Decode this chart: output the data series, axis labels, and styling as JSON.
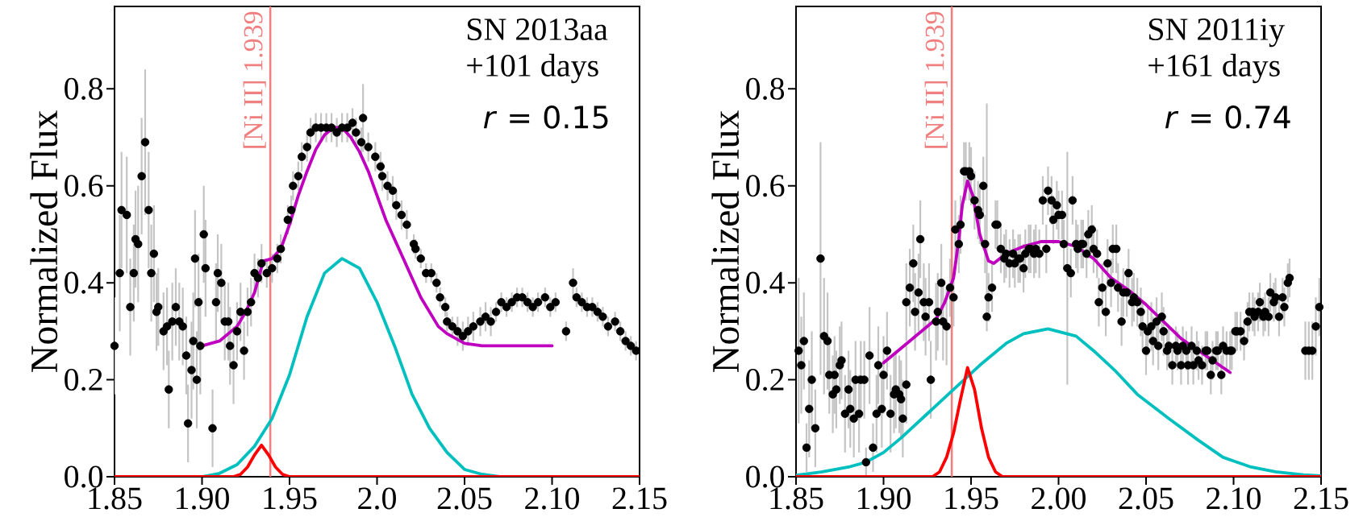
{
  "chart_data": [
    {
      "type": "scatter",
      "ylabel": "Normalized Flux",
      "xlim": [
        1.85,
        2.15
      ],
      "ylim": [
        0,
        0.97
      ],
      "xticks": [
        1.85,
        {
          "value": 1.9,
          "label": "1.90"
        },
        1.95,
        {
          "value": 2.0,
          "label": "2.0"
        },
        2.05,
        {
          "value": 2.1,
          "label": "2.10"
        },
        2.15
      ],
      "yticks": [
        {
          "value": 0,
          "label": "0.0"
        },
        0.2,
        0.4,
        0.6,
        0.8
      ],
      "annotations": [
        "SN 2013aa",
        "+101 days",
        "*r* = 0.15"
      ],
      "ref_lines": [
        {
          "axis": "x",
          "value": 1.939,
          "label": "[Ni II] 1.939",
          "color": "#f08080"
        }
      ],
      "series": [
        {
          "color": "#000000",
          "marker": "circle",
          "x": [
            1.85,
            1.853,
            1.854,
            1.857,
            1.859,
            1.861,
            1.862,
            1.8635,
            1.8655,
            1.8675,
            1.8695,
            1.871,
            1.8725,
            1.874,
            1.875,
            1.878,
            1.88,
            1.881,
            1.883,
            1.885,
            1.887,
            1.889,
            1.891,
            1.892,
            1.894,
            1.895,
            1.896,
            1.897,
            1.898,
            1.899,
            1.901,
            1.902,
            1.906,
            1.908,
            1.909,
            1.911,
            1.913,
            1.915,
            1.916,
            1.918,
            1.92,
            1.922,
            1.924,
            1.926,
            1.928,
            1.93,
            1.932,
            1.934,
            1.937,
            1.94,
            1.943,
            1.945,
            1.949,
            1.951,
            1.952,
            1.955,
            1.957,
            1.96,
            1.962,
            1.965,
            1.968,
            1.971,
            1.974,
            1.977,
            1.98,
            1.983,
            1.986,
            1.988,
            1.991,
            1.992,
            1.995,
            1.999,
            2.002,
            2.003,
            2.006,
            2.009,
            2.011,
            2.014,
            2.017,
            2.021,
            2.022,
            2.025,
            2.028,
            2.031,
            2.034,
            2.036,
            2.039,
            2.04,
            2.043,
            2.046,
            2.049,
            2.052,
            2.055,
            2.059,
            2.062,
            2.065,
            2.068,
            2.071,
            2.074,
            2.077,
            2.08,
            2.083,
            2.086,
            2.089,
            2.092,
            2.096,
            2.099,
            2.102,
            2.108,
            2.112,
            2.114,
            2.117,
            2.12,
            2.123,
            2.126,
            2.129,
            2.132,
            2.136,
            2.139,
            2.142,
            2.145,
            2.148
          ],
          "values": [
            0.27,
            0.42,
            0.55,
            0.54,
            0.35,
            0.42,
            0.49,
            0.48,
            0.62,
            0.69,
            0.55,
            0.42,
            0.46,
            0.34,
            0.35,
            0.3,
            0.31,
            0.18,
            0.32,
            0.35,
            0.32,
            0.31,
            0.25,
            0.11,
            0.22,
            0.28,
            0.45,
            0.2,
            0.36,
            0.27,
            0.5,
            0.43,
            0.1,
            0.36,
            0.42,
            0.4,
            0.32,
            0.32,
            0.27,
            0.23,
            0.3,
            0.34,
            0.26,
            0.34,
            0.36,
            0.42,
            0.41,
            0.44,
            0.42,
            0.43,
            0.45,
            0.47,
            0.53,
            0.55,
            0.6,
            0.62,
            0.66,
            0.68,
            0.71,
            0.72,
            0.72,
            0.72,
            0.72,
            0.71,
            0.72,
            0.72,
            0.73,
            0.71,
            0.69,
            0.74,
            0.68,
            0.66,
            0.64,
            0.62,
            0.6,
            0.59,
            0.56,
            0.54,
            0.52,
            0.48,
            0.47,
            0.45,
            0.42,
            0.42,
            0.4,
            0.37,
            0.35,
            0.32,
            0.31,
            0.3,
            0.29,
            0.3,
            0.31,
            0.32,
            0.33,
            0.32,
            0.34,
            0.36,
            0.35,
            0.36,
            0.37,
            0.37,
            0.36,
            0.35,
            0.36,
            0.37,
            0.35,
            0.36,
            0.3,
            0.4,
            0.37,
            0.36,
            0.35,
            0.35,
            0.34,
            0.33,
            0.31,
            0.32,
            0.3,
            0.28,
            0.27,
            0.26
          ],
          "errors": [
            0.1,
            0.12,
            0.12,
            0.12,
            0.1,
            0.1,
            0.1,
            0.12,
            0.12,
            0.15,
            0.12,
            0.1,
            0.1,
            0.08,
            0.08,
            0.08,
            0.08,
            0.08,
            0.08,
            0.08,
            0.08,
            0.08,
            0.08,
            0.08,
            0.1,
            0.1,
            0.1,
            0.1,
            0.1,
            0.1,
            0.1,
            0.1,
            0.08,
            0.08,
            0.08,
            0.08,
            0.08,
            0.08,
            0.08,
            0.08,
            0.06,
            0.06,
            0.06,
            0.05,
            0.05,
            0.04,
            0.04,
            0.04,
            0.03,
            0.03,
            0.03,
            0.03,
            0.03,
            0.03,
            0.03,
            0.03,
            0.03,
            0.03,
            0.03,
            0.03,
            0.03,
            0.03,
            0.03,
            0.03,
            0.03,
            0.03,
            0.03,
            0.03,
            0.03,
            0.07,
            0.03,
            0.03,
            0.03,
            0.03,
            0.03,
            0.03,
            0.03,
            0.03,
            0.03,
            0.02,
            0.02,
            0.02,
            0.02,
            0.02,
            0.02,
            0.02,
            0.02,
            0.02,
            0.02,
            0.03,
            0.03,
            0.03,
            0.03,
            0.03,
            0.03,
            0.03,
            0.02,
            0.02,
            0.02,
            0.02,
            0.02,
            0.02,
            0.02,
            0.02,
            0.02,
            0.02,
            0.02,
            0.02,
            0.02,
            0.03,
            0.02,
            0.02,
            0.02,
            0.02,
            0.02,
            0.02,
            0.02,
            0.02,
            0.02,
            0.02,
            0.02,
            0.02
          ]
        },
        {
          "type": "line",
          "color": "#bf00bf",
          "x": [
            1.9,
            1.91,
            1.92,
            1.925,
            1.93,
            1.935,
            1.94,
            1.945,
            1.95,
            1.955,
            1.96,
            1.965,
            1.97,
            1.975,
            1.98,
            1.985,
            1.99,
            1.995,
            2.0,
            2.005,
            2.01,
            2.015,
            2.02,
            2.025,
            2.03,
            2.035,
            2.04,
            2.05,
            2.06,
            2.08,
            2.1
          ],
          "values": [
            0.27,
            0.28,
            0.31,
            0.34,
            0.38,
            0.445,
            0.45,
            0.47,
            0.52,
            0.58,
            0.63,
            0.675,
            0.705,
            0.72,
            0.72,
            0.7,
            0.67,
            0.63,
            0.58,
            0.53,
            0.49,
            0.45,
            0.41,
            0.37,
            0.34,
            0.31,
            0.295,
            0.275,
            0.27,
            0.27,
            0.27
          ]
        },
        {
          "type": "line",
          "color": "#00bfbf",
          "x": [
            1.85,
            1.9,
            1.91,
            1.92,
            1.93,
            1.94,
            1.95,
            1.96,
            1.97,
            1.98,
            1.99,
            2.0,
            2.01,
            2.02,
            2.03,
            2.04,
            2.05,
            2.06,
            2.07,
            2.15
          ],
          "values": [
            0,
            0,
            0.007,
            0.025,
            0.063,
            0.12,
            0.21,
            0.33,
            0.42,
            0.45,
            0.43,
            0.36,
            0.27,
            0.17,
            0.1,
            0.05,
            0.015,
            0.005,
            0,
            0
          ]
        },
        {
          "type": "line",
          "color": "#ff0000",
          "x": [
            1.85,
            1.918,
            1.922,
            1.926,
            1.93,
            1.934,
            1.938,
            1.942,
            1.946,
            1.95,
            2.15
          ],
          "values": [
            0,
            0,
            0.005,
            0.02,
            0.045,
            0.065,
            0.045,
            0.02,
            0.005,
            0,
            0
          ]
        }
      ]
    },
    {
      "type": "scatter",
      "ylabel": "Normalized Flux",
      "xlim": [
        1.85,
        2.15
      ],
      "ylim": [
        0,
        0.97
      ],
      "xticks": [
        1.85,
        {
          "value": 1.9,
          "label": "1.90"
        },
        1.95,
        {
          "value": 2.0,
          "label": "2.00"
        },
        2.05,
        {
          "value": 2.1,
          "label": "2.10"
        },
        2.15
      ],
      "yticks": [
        {
          "value": 0,
          "label": "0.0"
        },
        0.2,
        0.4,
        0.6,
        0.8
      ],
      "annotations": [
        "SN 2011iy",
        "+161 days",
        "*r* = 0.74"
      ],
      "ref_lines": [
        {
          "axis": "x",
          "value": 1.939,
          "label": "[Ni II] 1.939",
          "color": "#f08080"
        }
      ],
      "series": [
        {
          "color": "#000000",
          "marker": "circle",
          "x": [
            1.8515,
            1.853,
            1.8545,
            1.856,
            1.8575,
            1.859,
            1.861,
            1.864,
            1.866,
            1.868,
            1.869,
            1.871,
            1.872,
            1.873,
            1.875,
            1.876,
            1.878,
            1.88,
            1.881,
            1.883,
            1.884,
            1.886,
            1.887,
            1.889,
            1.89,
            1.892,
            1.894,
            1.896,
            1.897,
            1.899,
            1.9,
            1.902,
            1.904,
            1.906,
            1.907,
            1.909,
            1.91,
            1.911,
            1.913,
            1.913,
            1.915,
            1.917,
            1.918,
            1.92,
            1.921,
            1.923,
            1.924,
            1.926,
            1.927,
            1.93,
            1.931,
            1.933,
            1.934,
            1.936,
            1.938,
            1.94,
            1.941,
            1.943,
            1.944,
            1.946,
            1.947,
            1.949,
            1.95,
            1.952,
            1.954,
            1.955,
            1.957,
            1.958,
            1.959,
            1.96,
            1.962,
            1.964,
            1.965,
            1.967,
            1.969,
            1.97,
            1.972,
            1.974,
            1.975,
            1.977,
            1.978,
            1.98,
            1.981,
            1.983,
            1.984,
            1.986,
            1.987,
            1.989,
            1.991,
            1.993,
            1.994,
            1.996,
            1.997,
            1.999,
            2.0,
            2.002,
            2.003,
            2.005,
            2.007,
            2.008,
            2.01,
            2.011,
            2.013,
            2.014,
            2.016,
            2.017,
            2.019,
            2.02,
            2.022,
            2.023,
            2.025,
            2.027,
            2.028,
            2.03,
            2.031,
            2.033,
            2.034,
            2.036,
            2.037,
            2.039,
            2.04,
            2.042,
            2.043,
            2.045,
            2.047,
            2.048,
            2.05,
            2.051,
            2.053,
            2.054,
            2.056,
            2.057,
            2.059,
            2.06,
            2.062,
            2.063,
            2.065,
            2.067,
            2.068,
            2.07,
            2.071,
            2.073,
            2.074,
            2.076,
            2.077,
            2.079,
            2.08,
            2.082,
            2.084,
            2.085,
            2.087,
            2.088,
            2.09,
            2.091,
            2.093,
            2.094,
            2.096,
            2.098,
            2.099,
            2.101,
            2.102,
            2.104,
            2.106,
            2.108,
            2.109,
            2.111,
            2.112,
            2.114,
            2.115,
            2.117,
            2.118,
            2.12,
            2.121,
            2.123,
            2.124,
            2.126,
            2.128,
            2.129,
            2.131,
            2.132,
            2.141,
            2.143,
            2.145,
            2.147,
            2.149
          ],
          "values": [
            0.26,
            0.23,
            0.28,
            0.06,
            0.14,
            0.2,
            0.1,
            0.45,
            0.29,
            0.28,
            0.21,
            0.17,
            0.21,
            0.18,
            0.23,
            0.24,
            0.13,
            0.18,
            0.14,
            0.12,
            0.2,
            0.13,
            0.2,
            0.2,
            0.03,
            0.25,
            0.06,
            0.13,
            0.23,
            0.14,
            0.21,
            0.26,
            0.13,
            0.17,
            0.18,
            0.17,
            0.16,
            0.12,
            0.19,
            0.36,
            0.39,
            0.44,
            0.34,
            0.38,
            0.49,
            0.36,
            0.33,
            0.36,
            0.2,
            0.32,
            0.34,
            0.4,
            0.32,
            0.31,
            0.39,
            0.37,
            0.51,
            0.48,
            0.52,
            0.63,
            0.63,
            0.63,
            0.62,
            0.57,
            0.55,
            0.54,
            0.6,
            0.48,
            0.33,
            0.37,
            0.39,
            0.52,
            0.52,
            0.47,
            0.45,
            0.46,
            0.44,
            0.46,
            0.44,
            0.45,
            0.45,
            0.43,
            0.46,
            0.47,
            0.47,
            0.46,
            0.47,
            0.46,
            0.57,
            0.47,
            0.59,
            0.57,
            0.53,
            0.56,
            0.54,
            0.54,
            0.48,
            0.43,
            0.42,
            0.57,
            0.48,
            0.47,
            0.48,
            0.48,
            0.46,
            0.5,
            0.51,
            0.47,
            0.46,
            0.36,
            0.39,
            0.34,
            0.44,
            0.4,
            0.47,
            0.47,
            0.39,
            0.32,
            0.38,
            0.38,
            0.42,
            0.36,
            0.37,
            0.36,
            0.34,
            0.31,
            0.26,
            0.3,
            0.31,
            0.28,
            0.32,
            0.27,
            0.33,
            0.3,
            0.26,
            0.27,
            0.23,
            0.27,
            0.26,
            0.23,
            0.27,
            0.26,
            0.23,
            0.27,
            0.23,
            0.26,
            0.24,
            0.23,
            0.26,
            0.26,
            0.21,
            0.24,
            0.26,
            0.26,
            0.21,
            0.27,
            0.26,
            0.26,
            0.26,
            0.3,
            0.3,
            0.3,
            0.28,
            0.32,
            0.34,
            0.34,
            0.33,
            0.34,
            0.36,
            0.33,
            0.34,
            0.33,
            0.38,
            0.36,
            0.37,
            0.33,
            0.37,
            0.35,
            0.4,
            0.41,
            0.26,
            0.26,
            0.26,
            0.31,
            0.35
          ],
          "errors": [
            0.15,
            0.1,
            0.1,
            0.05,
            0.1,
            0.1,
            0.08,
            0.24,
            0.12,
            0.1,
            0.08,
            0.08,
            0.08,
            0.08,
            0.08,
            0.08,
            0.08,
            0.08,
            0.08,
            0.08,
            0.08,
            0.08,
            0.08,
            0.08,
            0.03,
            0.1,
            0.05,
            0.08,
            0.08,
            0.08,
            0.08,
            0.08,
            0.08,
            0.08,
            0.08,
            0.08,
            0.08,
            0.08,
            0.08,
            0.08,
            0.08,
            0.08,
            0.08,
            0.08,
            0.08,
            0.08,
            0.08,
            0.08,
            0.08,
            0.08,
            0.08,
            0.08,
            0.08,
            0.08,
            0.06,
            0.06,
            0.06,
            0.06,
            0.06,
            0.06,
            0.06,
            0.06,
            0.06,
            0.06,
            0.06,
            0.06,
            0.06,
            0.06,
            [
              0.3,
              0.77
            ],
            0.05,
            0.05,
            0.05,
            0.05,
            0.05,
            0.05,
            0.05,
            0.05,
            0.05,
            0.05,
            0.05,
            0.05,
            0.05,
            0.05,
            0.05,
            0.05,
            0.05,
            0.05,
            0.05,
            0.05,
            0.05,
            0.05,
            0.05,
            0.05,
            0.05,
            0.05,
            0.05,
            0.05,
            0.24,
            0.05,
            0.05,
            0.05,
            0.05,
            0.05,
            0.05,
            0.05,
            0.05,
            0.05,
            0.05,
            0.05,
            0.05,
            0.05,
            0.05,
            0.05,
            0.05,
            0.05,
            0.05,
            0.05,
            0.05,
            0.05,
            0.05,
            0.05,
            0.05,
            0.05,
            0.05,
            0.05,
            0.05,
            0.05,
            0.05,
            0.05,
            0.05,
            0.05,
            0.05,
            0.05,
            0.05,
            0.04,
            0.04,
            0.04,
            0.04,
            0.04,
            0.04,
            0.04,
            0.04,
            0.04,
            0.04,
            0.04,
            0.04,
            0.04,
            0.04,
            0.04,
            0.04,
            0.04,
            0.04,
            0.04,
            0.04,
            0.04,
            0.04,
            0.04,
            0.04,
            0.04,
            0.04,
            0.04,
            0.04,
            0.04,
            0.04,
            0.04,
            0.04,
            0.04,
            0.04,
            0.04,
            0.04,
            0.04,
            0.04,
            0.04,
            0.04,
            0.04,
            0.04,
            0.04,
            0.04,
            0.04,
            0.04,
            0.06,
            0.06,
            0.06,
            0.06,
            0.06
          ]
        },
        {
          "type": "line",
          "color": "#bf00bf",
          "x": [
            1.9,
            1.91,
            1.92,
            1.93,
            1.935,
            1.94,
            1.943,
            1.945,
            1.948,
            1.951,
            1.955,
            1.96,
            1.963,
            1.97,
            1.98,
            1.99,
            2.0,
            2.01,
            2.02,
            2.03,
            2.04,
            2.05,
            2.06,
            2.07,
            2.08,
            2.09,
            2.098
          ],
          "values": [
            0.235,
            0.265,
            0.295,
            0.325,
            0.36,
            0.41,
            0.49,
            0.56,
            0.61,
            0.58,
            0.5,
            0.445,
            0.44,
            0.46,
            0.475,
            0.485,
            0.485,
            0.475,
            0.45,
            0.41,
            0.385,
            0.355,
            0.32,
            0.285,
            0.26,
            0.235,
            0.215
          ]
        },
        {
          "type": "line",
          "color": "#00bfbf",
          "x": [
            1.85,
            1.865,
            1.88,
            1.89,
            1.9,
            1.91,
            1.925,
            1.94,
            1.955,
            1.97,
            1.98,
            1.994,
            2.01,
            2.02,
            2.032,
            2.045,
            2.063,
            2.08,
            2.094,
            2.11,
            2.124,
            2.14,
            2.15
          ],
          "values": [
            0.003,
            0.01,
            0.02,
            0.03,
            0.05,
            0.08,
            0.13,
            0.18,
            0.23,
            0.275,
            0.295,
            0.305,
            0.29,
            0.26,
            0.22,
            0.17,
            0.12,
            0.075,
            0.04,
            0.02,
            0.01,
            0.004,
            0.002
          ]
        },
        {
          "type": "line",
          "color": "#ff0000",
          "x": [
            1.85,
            1.928,
            1.932,
            1.936,
            1.94,
            1.944,
            1.948,
            1.952,
            1.956,
            1.96,
            1.964,
            1.968,
            2.15
          ],
          "values": [
            0,
            0,
            0.01,
            0.04,
            0.09,
            0.16,
            0.225,
            0.18,
            0.1,
            0.04,
            0.01,
            0,
            0
          ]
        }
      ]
    }
  ]
}
